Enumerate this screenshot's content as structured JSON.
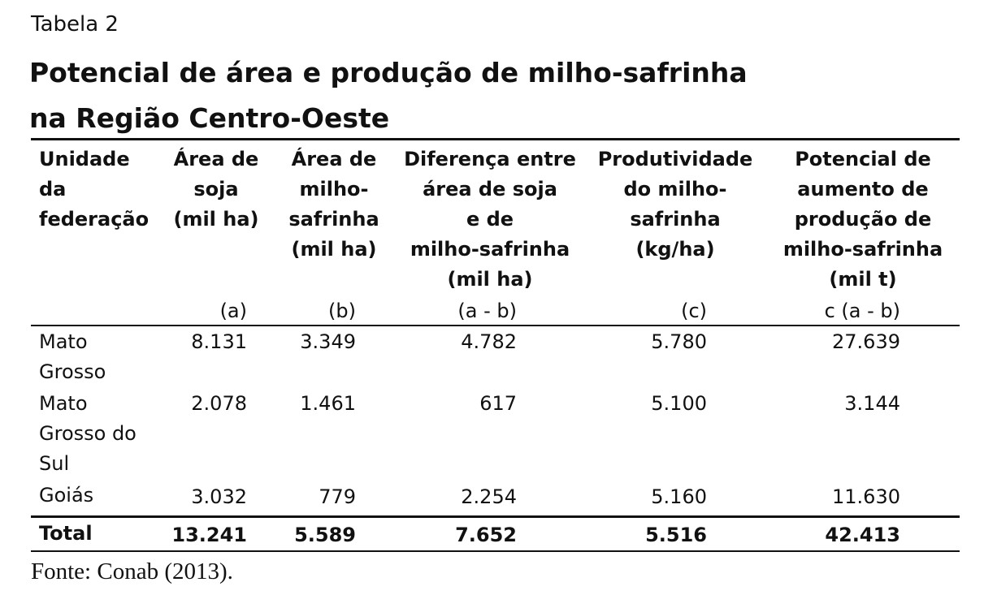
{
  "table_label": "Tabela 2",
  "title_lines": [
    "Potencial de área e produção de milho-safrinha",
    "na Região Centro-Oeste"
  ],
  "columns": [
    {
      "header_lines": [
        "Unidade",
        "da",
        "federação"
      ],
      "code": ""
    },
    {
      "header_lines": [
        "Área de",
        "soja",
        "(mil ha)"
      ],
      "code": "(a)"
    },
    {
      "header_lines": [
        "Área de",
        "milho-",
        "safrinha",
        "(mil ha)"
      ],
      "code": "(b)"
    },
    {
      "header_lines": [
        "Diferença entre",
        "área de soja",
        "e de",
        "milho-safrinha",
        "(mil ha)"
      ],
      "code": "(a - b)"
    },
    {
      "header_lines": [
        "Produtividade",
        "do milho-",
        "safrinha",
        "(kg/ha)"
      ],
      "code": "(c)"
    },
    {
      "header_lines": [
        "Potencial de",
        "aumento de",
        "produção de",
        "milho-safrinha",
        "(mil t)"
      ],
      "code": "c (a - b)"
    }
  ],
  "rows": [
    {
      "uf_lines": [
        "Mato",
        "Grosso"
      ],
      "values": [
        "8.131",
        "3.349",
        "4.782",
        "5.780",
        "27.639"
      ]
    },
    {
      "uf_lines": [
        "Mato",
        "Grosso do",
        "Sul"
      ],
      "values": [
        "2.078",
        "1.461",
        "617",
        "5.100",
        "3.144"
      ]
    },
    {
      "uf_lines": [
        "Goiás"
      ],
      "values": [
        "3.032",
        "779",
        "2.254",
        "5.160",
        "11.630"
      ]
    }
  ],
  "total": {
    "label": "Total",
    "values": [
      "13.241",
      "5.589",
      "7.652",
      "5.516",
      "42.413"
    ]
  },
  "source": "Fonte: Conab (2013)."
}
